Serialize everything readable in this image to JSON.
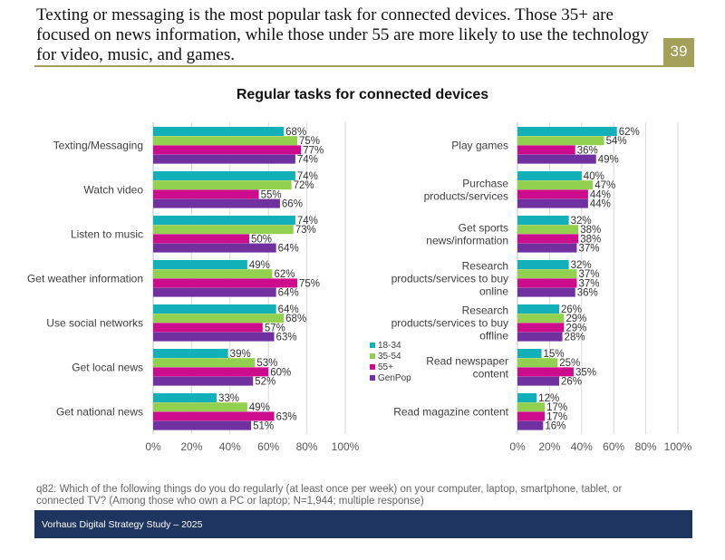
{
  "slide": {
    "headline": "Texting or messaging is the most popular task for connected devices. Those 35+ are focused on news information, while those under 55 are more likely to use the technology for video, music, and games.",
    "page_number": "39",
    "footnote": "q82: Which of the following things do you do regularly (at least once per week) on your computer, laptop, smartphone, tablet, or connected TV? (Among those who own a PC or laptop; N=1,944; multiple response)",
    "footer": "Vorhaus Digital Strategy Study – 2025"
  },
  "chart_data": {
    "type": "bar",
    "orientation": "horizontal",
    "title": "Regular tasks for connected devices",
    "xlim": [
      0,
      100
    ],
    "x_ticks": [
      "0%",
      "20%",
      "40%",
      "60%",
      "80%",
      "100%"
    ],
    "series_names": [
      "18-34",
      "35-54",
      "55+",
      "GenPop"
    ],
    "colors": [
      "#12b0b8",
      "#92d050",
      "#cc0c8c",
      "#7030a0"
    ],
    "legend": "center",
    "grid": true,
    "panels": [
      {
        "categories": [
          [
            "Texting/Messaging"
          ],
          [
            "Watch video"
          ],
          [
            "Listen to music"
          ],
          [
            "Get weather information"
          ],
          [
            "Use social networks"
          ],
          [
            "Get local news"
          ],
          [
            "Get national news"
          ]
        ],
        "values": [
          [
            68,
            75,
            77,
            74
          ],
          [
            74,
            72,
            55,
            66
          ],
          [
            74,
            73,
            50,
            64
          ],
          [
            49,
            62,
            75,
            64
          ],
          [
            64,
            68,
            57,
            63
          ],
          [
            39,
            53,
            60,
            52
          ],
          [
            33,
            49,
            63,
            51
          ]
        ]
      },
      {
        "categories": [
          [
            "Play games"
          ],
          [
            "Purchase",
            "products/services"
          ],
          [
            "Get sports",
            "news/information"
          ],
          [
            "Research",
            "products/services to buy",
            "online"
          ],
          [
            "Research",
            "products/services to buy",
            "offline"
          ],
          [
            "Read newspaper",
            "content"
          ],
          [
            "Read magazine content"
          ]
        ],
        "values": [
          [
            62,
            54,
            36,
            49
          ],
          [
            40,
            47,
            44,
            44
          ],
          [
            32,
            38,
            38,
            37
          ],
          [
            32,
            37,
            37,
            36
          ],
          [
            26,
            29,
            29,
            28
          ],
          [
            15,
            25,
            35,
            26
          ],
          [
            12,
            17,
            17,
            16
          ]
        ]
      }
    ]
  }
}
